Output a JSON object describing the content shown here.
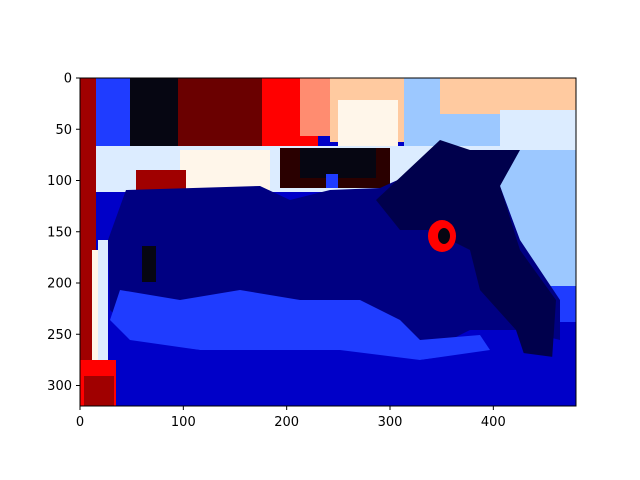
{
  "chart_data": {
    "type": "heatmap",
    "title": "",
    "xlabel": "",
    "ylabel": "",
    "xlim": [
      0,
      480
    ],
    "ylim": [
      320,
      0
    ],
    "x_ticks": [
      0,
      100,
      200,
      300,
      400
    ],
    "x_tick_labels": [
      "0",
      "100",
      "200",
      "300",
      "400"
    ],
    "y_ticks": [
      0,
      50,
      100,
      150,
      200,
      250,
      300
    ],
    "y_tick_labels": [
      "0",
      "50",
      "100",
      "150",
      "200",
      "250",
      "300"
    ],
    "grid": false,
    "colormap": "seismic",
    "colors": {
      "dark_navy": "#00004c",
      "navy": "#000082",
      "blue": "#0000c8",
      "mid_blue": "#1f3cff",
      "light_blue": "#9cc8ff",
      "pale_blue": "#dcecff",
      "cream": "#fff6ea",
      "peach": "#ffcaa0",
      "salmon": "#ff8c70",
      "red": "#ff0000",
      "dark_red": "#a00000",
      "maroon": "#6a0000",
      "black": "#060612"
    },
    "regions": [
      {
        "label": "background",
        "color": "blue",
        "x": [
          0,
          480
        ],
        "y": [
          0,
          320
        ]
      },
      {
        "label": "sky-black",
        "color": "black",
        "x": [
          60,
          100
        ],
        "y": [
          0,
          70
        ]
      },
      {
        "label": "sky-maroon",
        "color": "maroon",
        "x": [
          95,
          180
        ],
        "y": [
          0,
          70
        ]
      },
      {
        "label": "sky-red",
        "color": "red",
        "x": [
          180,
          240
        ],
        "y": [
          0,
          70
        ]
      },
      {
        "label": "sky-salmon",
        "color": "salmon",
        "x": [
          230,
          260
        ],
        "y": [
          0,
          55
        ]
      },
      {
        "label": "sky-peach",
        "color": "peach",
        "x": [
          250,
          330
        ],
        "y": [
          0,
          70
        ]
      },
      {
        "label": "sky-lightblue",
        "color": "light_blue",
        "x": [
          330,
          480
        ],
        "y": [
          0,
          70
        ]
      },
      {
        "label": "horizon-pale",
        "color": "pale_blue",
        "x": [
          10,
          480
        ],
        "y": [
          65,
          110
        ]
      },
      {
        "label": "right-field-lightblue",
        "color": "light_blue",
        "x": [
          380,
          480
        ],
        "y": [
          110,
          200
        ]
      },
      {
        "label": "right-field-midblue",
        "color": "mid_blue",
        "x": [
          380,
          480
        ],
        "y": [
          200,
          235
        ]
      },
      {
        "label": "navy-body",
        "color": "navy",
        "x": [
          40,
          480
        ],
        "y": [
          90,
          320
        ]
      },
      {
        "label": "dark-navy-tail",
        "color": "dark_navy",
        "x": [
          400,
          460
        ],
        "y": [
          190,
          300
        ]
      },
      {
        "label": "left-strip-red",
        "color": "dark_red",
        "x": [
          0,
          12
        ],
        "y": [
          0,
          320
        ]
      }
    ]
  }
}
